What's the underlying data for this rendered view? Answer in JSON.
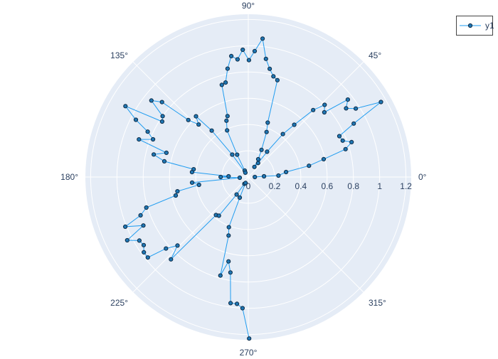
{
  "chart_data": {
    "type": "line",
    "subtype": "polar",
    "mode": "lines+markers",
    "radial_range": [
      0,
      1.24
    ],
    "radial_ticks": [
      0,
      0.2,
      0.4,
      0.6,
      0.8,
      1,
      1.2
    ],
    "radial_tick_labels": [
      "0",
      "0.2",
      "0.4",
      "0.6",
      "0.8",
      "1",
      "1.2"
    ],
    "angular_ticks": [
      0,
      45,
      90,
      135,
      180,
      225,
      270,
      315
    ],
    "angular_tick_labels": [
      "0°",
      "45°",
      "90°",
      "135°",
      "180°",
      "225°",
      "270°",
      "315°"
    ],
    "grid": true,
    "legend_placement": "top-right",
    "colors": {
      "line": "#1f9cf0",
      "marker_fill": "#1f77b4",
      "marker_outline": "#0d2a45",
      "polar_bg": "#e5ecf6",
      "grid": "#ffffff"
    },
    "series": [
      {
        "name": "y1",
        "theta": [
          -0.3,
          2.6,
          2.7,
          7.5,
          10.5,
          13.3,
          16,
          18.7,
          21.1,
          24.2,
          26.9,
          29.5,
          32.5,
          35.1,
          37.9,
          40.4,
          43.4,
          45.9,
          48.7,
          51.2,
          53.4,
          55,
          59,
          60.8,
          64,
          67.9,
          70.4,
          73.3,
          76,
          78.8,
          81.5,
          84.1,
          87.1,
          89.7,
          92.5,
          95.2,
          98,
          100.8,
          103.5,
          106,
          108.8,
          111.2,
          114.4,
          116.6,
          119,
          124,
          125.7,
          128.2,
          130.7,
          133.4,
          136.4,
          139,
          141.7,
          144.6,
          147.2,
          150,
          153,
          155.7,
          158.4,
          161,
          163.5,
          166.6,
          169.4,
          171.9,
          175,
          178,
          180,
          185,
          185.7,
          189,
          191.4,
          194.3,
          196.7,
          199.6,
          202,
          204.8,
          207.6,
          210.3,
          213.1,
          215.8,
          218.7,
          221,
          224.1,
          226.8,
          229.7,
          232.8,
          236.3,
          240,
          245,
          247.5,
          248.9,
          251.4,
          254.2,
          256.8,
          259.4,
          262,
          264.9,
          267.5,
          270.3
        ],
        "r": [
          0.05,
          0.12,
          0.23,
          0.29,
          0.47,
          0.59,
          0.77,
          0.83,
          0.77,
          0.76,
          0.9,
          1.16,
          0.97,
          0.91,
          0.96,
          0.76,
          0.8,
          0.71,
          0.53,
          0.42,
          0.24,
          0.13,
          0.09,
          0.155,
          0.23,
          0.37,
          0.44,
          0.77,
          0.79,
          0.84,
          0.91,
          1.06,
          0.96,
          0.89,
          0.97,
          0.9,
          0.93,
          0.84,
          0.74,
          0.73,
          0.49,
          0.46,
          0.39,
          0.19,
          0.056,
          0.04,
          0.21,
          0.45,
          0.61,
          0.55,
          0.63,
          0.87,
          0.94,
          0.8,
          0.78,
          1.08,
          0.96,
          0.84,
          0.78,
          0.88,
          0.65,
          0.74,
          0.65,
          0.42,
          0.43,
          0.15,
          0.21,
          0.065,
          0.43,
          0.38,
          0.55,
          0.57,
          0.81,
          0.87,
          1.01,
          0.88,
          1.04,
          0.96,
          0.95,
          0.98,
          0.98,
          0.83,
          0.75,
          0.86,
          0.38,
          0.37,
          0.16,
          0.06,
          0.05,
          0.17,
          0.41,
          0.47,
          0.78,
          0.66,
          0.74,
          0.97,
          0.97,
          1.0,
          1.23
        ]
      }
    ]
  }
}
